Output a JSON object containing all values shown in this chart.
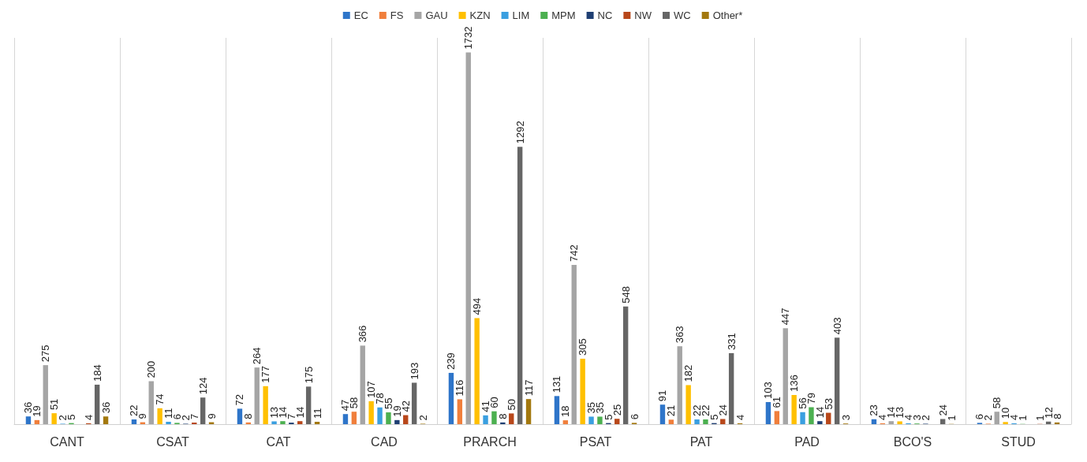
{
  "chart_data": {
    "type": "bar",
    "categories": [
      "CANT",
      "CSAT",
      "CAT",
      "CAD",
      "PRARCH",
      "PSAT",
      "PAT",
      "PAD",
      "BCO'S",
      "STUD"
    ],
    "series": [
      {
        "name": "EC",
        "color": "#2e75c9",
        "values": [
          36,
          22,
          72,
          47,
          239,
          131,
          91,
          103,
          23,
          6
        ]
      },
      {
        "name": "FS",
        "color": "#f07f3c",
        "values": [
          19,
          9,
          8,
          58,
          116,
          18,
          21,
          61,
          4,
          2
        ]
      },
      {
        "name": "GAU",
        "color": "#a5a5a5",
        "values": [
          275,
          200,
          264,
          366,
          1732,
          742,
          363,
          447,
          14,
          58
        ]
      },
      {
        "name": "KZN",
        "color": "#ffc000",
        "values": [
          51,
          74,
          177,
          107,
          494,
          305,
          182,
          136,
          13,
          10
        ]
      },
      {
        "name": "LIM",
        "color": "#3a9fe0",
        "values": [
          2,
          11,
          13,
          78,
          41,
          35,
          22,
          56,
          4,
          4
        ]
      },
      {
        "name": "MPM",
        "color": "#4cb050",
        "values": [
          5,
          6,
          14,
          55,
          60,
          35,
          22,
          79,
          3,
          1
        ]
      },
      {
        "name": "NC",
        "color": "#1f3f73",
        "values": [
          null,
          2,
          7,
          19,
          8,
          5,
          5,
          14,
          2,
          null
        ]
      },
      {
        "name": "NW",
        "color": "#b8471a",
        "values": [
          4,
          7,
          14,
          42,
          50,
          25,
          24,
          53,
          null,
          1
        ]
      },
      {
        "name": "WC",
        "color": "#666666",
        "values": [
          184,
          124,
          175,
          193,
          1292,
          548,
          331,
          403,
          24,
          12
        ]
      },
      {
        "name": "Other*",
        "color": "#a3780e",
        "values": [
          36,
          9,
          11,
          2,
          117,
          6,
          4,
          3,
          1,
          8
        ]
      }
    ],
    "data_labels": true,
    "grid": "x",
    "legend": "top"
  }
}
